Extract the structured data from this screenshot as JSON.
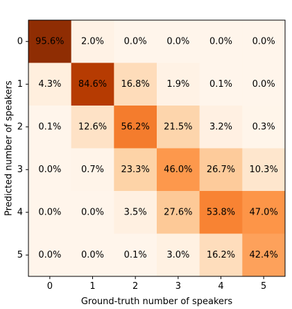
{
  "chart_data": {
    "type": "heatmap",
    "title": "",
    "xlabel": "Ground-truth number of speakers",
    "ylabel": "Predicted number of speakers",
    "x_categories": [
      "0",
      "1",
      "2",
      "3",
      "4",
      "5"
    ],
    "y_categories": [
      "0",
      "1",
      "2",
      "3",
      "4",
      "5"
    ],
    "value_unit": "%",
    "values": [
      [
        95.6,
        2.0,
        0.0,
        0.0,
        0.0,
        0.0
      ],
      [
        4.3,
        84.6,
        16.8,
        1.9,
        0.1,
        0.0
      ],
      [
        0.1,
        12.6,
        56.2,
        21.5,
        3.2,
        0.3
      ],
      [
        0.0,
        0.7,
        23.3,
        46.0,
        26.7,
        10.3
      ],
      [
        0.0,
        0.0,
        3.5,
        27.6,
        53.8,
        47.0
      ],
      [
        0.0,
        0.0,
        0.1,
        3.0,
        16.2,
        42.4
      ]
    ],
    "vmin": 0,
    "vmax": 100,
    "colormap": [
      "#fff5eb",
      "#fdd0a2",
      "#fd8d3c",
      "#d94801",
      "#7f2704"
    ],
    "grid": false
  }
}
